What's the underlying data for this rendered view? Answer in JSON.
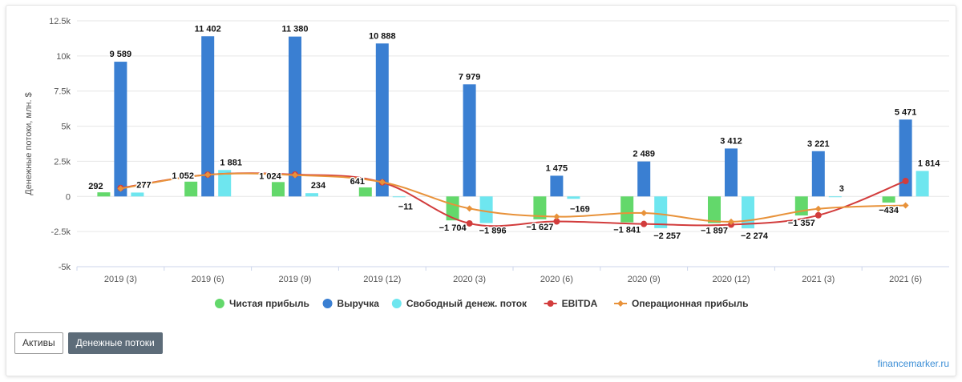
{
  "chart_data": {
    "type": "bar",
    "ylabel": "Денежные потоки, млн. $",
    "ylim": [
      -5000,
      12500
    ],
    "yticks": [
      {
        "value": -5000,
        "label": "-5k"
      },
      {
        "value": -2500,
        "label": "-2.5k"
      },
      {
        "value": 0,
        "label": "0"
      },
      {
        "value": 2500,
        "label": "2.5k"
      },
      {
        "value": 5000,
        "label": "5k"
      },
      {
        "value": 7500,
        "label": "7.5k"
      },
      {
        "value": 10000,
        "label": "10k"
      },
      {
        "value": 12500,
        "label": "12.5k"
      }
    ],
    "categories": [
      "2019 (3)",
      "2019 (6)",
      "2019 (9)",
      "2019 (12)",
      "2020 (3)",
      "2020 (6)",
      "2020 (9)",
      "2020 (12)",
      "2021 (3)",
      "2021 (6)"
    ],
    "grid": true,
    "legend_position": "bottom",
    "bar_series": [
      {
        "name": "Чистая прибыль",
        "color": "#63d86b",
        "values": [
          292,
          1052,
          1024,
          641,
          -1704,
          -1627,
          -1841,
          -1897,
          -1357,
          -434
        ],
        "labels": [
          "292",
          "1 052",
          "1 024",
          "641",
          "−1 704",
          "−1 627",
          "−1 841",
          "−1 897",
          "−1 357",
          "−434"
        ]
      },
      {
        "name": "Выручка",
        "color": "#3a7fd2",
        "values": [
          9589,
          11402,
          11380,
          10888,
          7979,
          1475,
          2489,
          3412,
          3221,
          5471
        ],
        "labels": [
          "9 589",
          "11 402",
          "11 380",
          "10 888",
          "7 979",
          "1 475",
          "2 489",
          "3 412",
          "3 221",
          "5 471"
        ]
      },
      {
        "name": "Свободный денеж. поток",
        "color": "#6ee6ef",
        "values": [
          277,
          1881,
          234,
          -11,
          -1896,
          -169,
          -2257,
          -2274,
          3,
          1814
        ],
        "labels": [
          "277",
          "1 881",
          "234",
          "−11",
          "−1 896",
          "−169",
          "−2 257",
          "−2 274",
          "3",
          "1 814"
        ]
      }
    ],
    "line_series": [
      {
        "name": "EBITDA",
        "color": "#d23c3c",
        "values": [
          600,
          1550,
          1560,
          1000,
          -1920,
          -1780,
          -1960,
          -2010,
          -1340,
          1100
        ]
      },
      {
        "name": "Операционная прибыль",
        "color": "#e8923a",
        "values": [
          560,
          1540,
          1520,
          1020,
          -860,
          -1440,
          -1180,
          -1800,
          -880,
          -640
        ]
      }
    ]
  },
  "buttons": {
    "assets_label": "Активы",
    "cashflow_label": "Денежные потоки"
  },
  "brand": "financemarker.ru"
}
